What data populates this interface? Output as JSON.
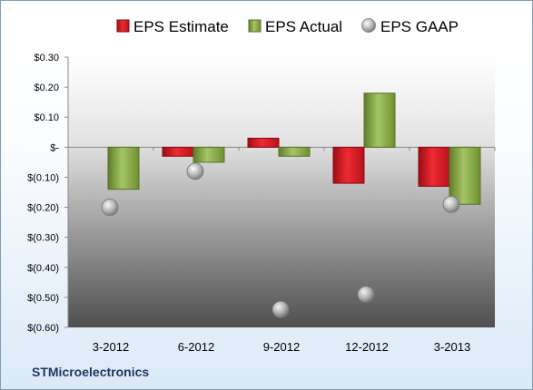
{
  "company": "STMicroelectronics",
  "chart_data": {
    "type": "bar",
    "title": "",
    "xlabel": "",
    "ylabel": "",
    "categories": [
      "3-2012",
      "6-2012",
      "9-2012",
      "12-2012",
      "3-2013"
    ],
    "series": [
      {
        "name": "EPS Estimate",
        "kind": "bar",
        "color": "#e2202a",
        "values": [
          null,
          -0.03,
          0.03,
          -0.12,
          -0.13
        ]
      },
      {
        "name": "EPS Actual",
        "kind": "bar",
        "color": "#8fb34a",
        "values": [
          -0.14,
          -0.05,
          -0.03,
          0.18,
          -0.19
        ]
      },
      {
        "name": "EPS GAAP",
        "kind": "marker",
        "color": "#b8b8b8",
        "values": [
          -0.2,
          -0.08,
          -0.54,
          -0.49,
          -0.19
        ]
      }
    ],
    "ylim": [
      -0.6,
      0.3
    ],
    "yticks": [
      {
        "v": 0.3,
        "label": "$0.30"
      },
      {
        "v": 0.2,
        "label": "$0.20"
      },
      {
        "v": 0.1,
        "label": "$0.10"
      },
      {
        "v": 0.0,
        "label": "$-"
      },
      {
        "v": -0.1,
        "label": "$(0.10)"
      },
      {
        "v": -0.2,
        "label": "$(0.20)"
      },
      {
        "v": -0.3,
        "label": "$(0.30)"
      },
      {
        "v": -0.4,
        "label": "$(0.40)"
      },
      {
        "v": -0.5,
        "label": "$(0.50)"
      },
      {
        "v": -0.6,
        "label": "$(0.60)"
      }
    ],
    "grid": false,
    "legend_position": "top"
  }
}
